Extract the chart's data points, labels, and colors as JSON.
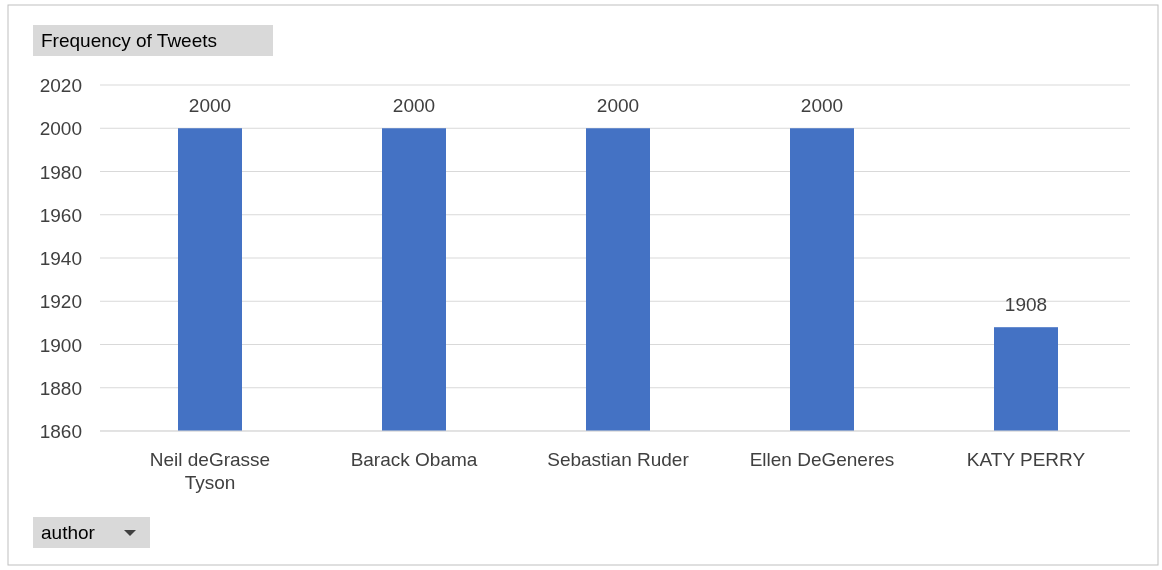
{
  "chart_data": {
    "type": "bar",
    "title": "Frequency of Tweets",
    "xlabel": "author",
    "categories": [
      "Neil deGrasse Tyson",
      "Barack Obama",
      "Sebastian Ruder",
      "Ellen DeGeneres",
      "KATY PERRY"
    ],
    "values": [
      2000,
      2000,
      2000,
      2000,
      1908
    ],
    "color": "#4472c4",
    "ylim": [
      1860,
      2020
    ],
    "yticks": [
      1860,
      1880,
      1900,
      1920,
      1940,
      1960,
      1980,
      2000,
      2020
    ],
    "grid": "y",
    "data_labels": true
  }
}
